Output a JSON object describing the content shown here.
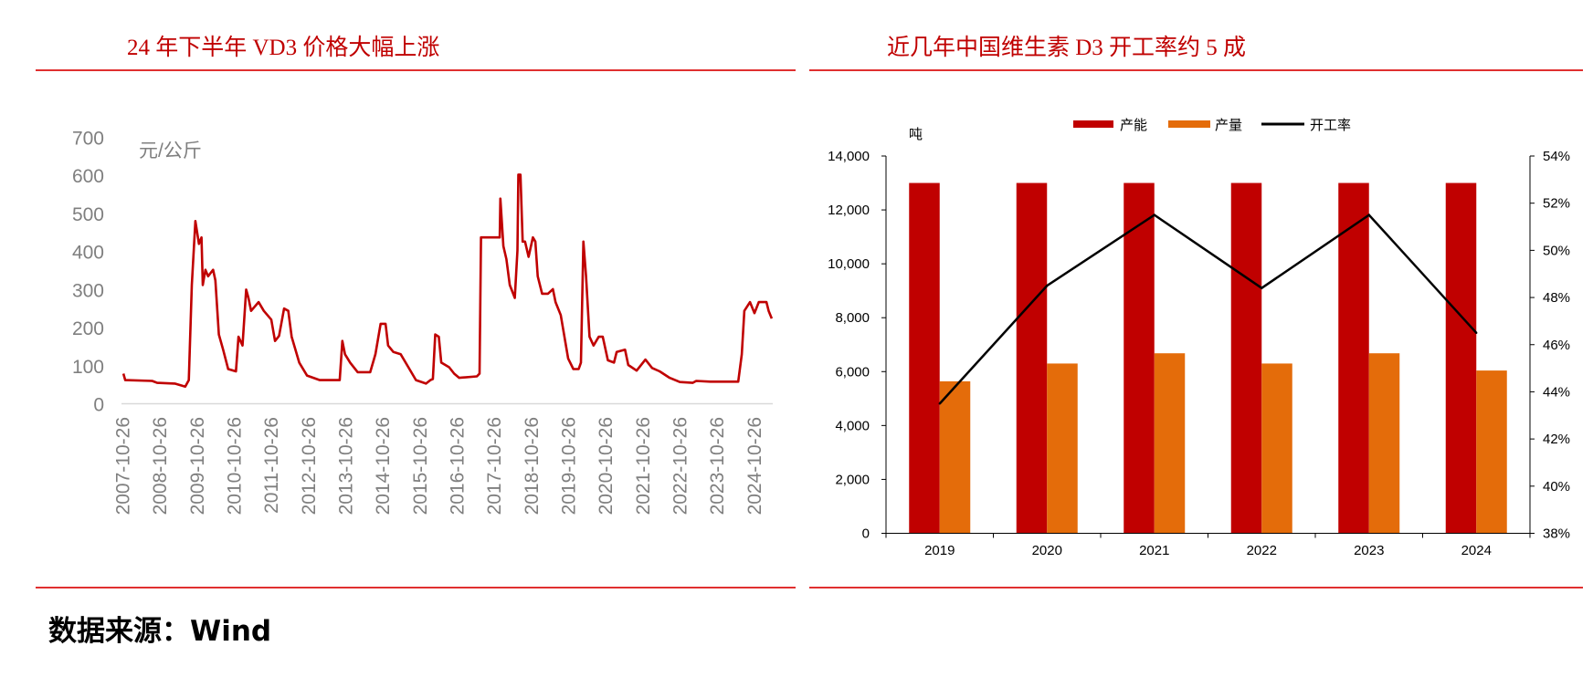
{
  "source": "数据来源：Wind",
  "colors": {
    "title": "#C00000",
    "rule": "#E03030",
    "capacity": "#C00000",
    "output": "#E46C0A",
    "rate": "#000000",
    "price": "#C00000"
  },
  "chart_data": [
    {
      "type": "line",
      "title": "24 年下半年 VD3 价格大幅上涨",
      "unit_label": "元/公斤",
      "xlabel": "",
      "ylabel": "",
      "ylim": [
        0,
        700
      ],
      "y_ticks": [
        "0",
        "100",
        "200",
        "300",
        "400",
        "500",
        "600",
        "700"
      ],
      "x_ticks": [
        "2007-10-26",
        "2008-10-26",
        "2009-10-26",
        "2010-10-26",
        "2011-10-26",
        "2012-10-26",
        "2013-10-26",
        "2014-10-26",
        "2015-10-26",
        "2016-10-26",
        "2017-10-26",
        "2018-10-26",
        "2019-10-26",
        "2020-10-26",
        "2021-10-26",
        "2022-10-26",
        "2023-10-26",
        "2024-10-26"
      ],
      "grid": false,
      "series": [
        {
          "points": [
            [
              "2007-11-01",
              79
            ],
            [
              "2007-11-19",
              62
            ],
            [
              "2008-08-10",
              60
            ],
            [
              "2008-09-28",
              55
            ],
            [
              "2009-03-21",
              53
            ],
            [
              "2009-07-01",
              45
            ],
            [
              "2009-08-05",
              62
            ],
            [
              "2009-09-04",
              312
            ],
            [
              "2009-10-09",
              480
            ],
            [
              "2009-11-13",
              420
            ],
            [
              "2009-12-08",
              437
            ],
            [
              "2009-12-21",
              312
            ],
            [
              "2010-01-16",
              352
            ],
            [
              "2010-02-11",
              335
            ],
            [
              "2010-04-01",
              352
            ],
            [
              "2010-04-24",
              324
            ],
            [
              "2010-05-28",
              182
            ],
            [
              "2010-07-09",
              142
            ],
            [
              "2010-08-27",
              91
            ],
            [
              "2010-11-12",
              85
            ],
            [
              "2010-12-07",
              176
            ],
            [
              "2011-01-15",
              153
            ],
            [
              "2011-02-20",
              300
            ],
            [
              "2011-03-15",
              278
            ],
            [
              "2011-04-10",
              244
            ],
            [
              "2011-06-22",
              267
            ],
            [
              "2011-08-13",
              244
            ],
            [
              "2011-10-25",
              221
            ],
            [
              "2011-12-01",
              165
            ],
            [
              "2012-01-10",
              178
            ],
            [
              "2012-02-28",
              250
            ],
            [
              "2012-04-09",
              244
            ],
            [
              "2012-05-13",
              176
            ],
            [
              "2012-07-26",
              108
            ],
            [
              "2012-10-10",
              74
            ],
            [
              "2013-02-13",
              62
            ],
            [
              "2013-08-28",
              62
            ],
            [
              "2013-09-23",
              165
            ],
            [
              "2013-10-19",
              130
            ],
            [
              "2013-12-08",
              108
            ],
            [
              "2014-02-21",
              83
            ],
            [
              "2014-06-24",
              83
            ],
            [
              "2014-08-14",
              130
            ],
            [
              "2014-10-04",
              210
            ],
            [
              "2014-11-22",
              210
            ],
            [
              "2014-12-17",
              153
            ],
            [
              "2015-02-07",
              136
            ],
            [
              "2015-04-20",
              130
            ],
            [
              "2015-07-04",
              96
            ],
            [
              "2015-09-17",
              62
            ],
            [
              "2015-12-25",
              53
            ],
            [
              "2016-02-06",
              62
            ],
            [
              "2016-03-01",
              65
            ],
            [
              "2016-03-24",
              182
            ],
            [
              "2016-04-28",
              176
            ],
            [
              "2016-05-23",
              108
            ],
            [
              "2016-08-08",
              96
            ],
            [
              "2016-09-26",
              79
            ],
            [
              "2016-11-15",
              68
            ],
            [
              "2017-05-08",
              72
            ],
            [
              "2017-06-03",
              79
            ],
            [
              "2017-06-17",
              437
            ],
            [
              "2017-12-18",
              437
            ],
            [
              "2017-12-25",
              539
            ],
            [
              "2018-01-23",
              414
            ],
            [
              "2018-02-22",
              380
            ],
            [
              "2018-03-27",
              312
            ],
            [
              "2018-05-16",
              278
            ],
            [
              "2018-06-11",
              403
            ],
            [
              "2018-06-20",
              602
            ],
            [
              "2018-07-10",
              602
            ],
            [
              "2018-08-01",
              426
            ],
            [
              "2018-08-24",
              426
            ],
            [
              "2018-09-28",
              386
            ],
            [
              "2018-11-09",
              437
            ],
            [
              "2018-12-04",
              426
            ],
            [
              "2018-12-27",
              335
            ],
            [
              "2019-02-08",
              289
            ],
            [
              "2019-04-07",
              289
            ],
            [
              "2019-05-25",
              301
            ],
            [
              "2019-06-20",
              267
            ],
            [
              "2019-08-10",
              233
            ],
            [
              "2019-10-22",
              119
            ],
            [
              "2019-12-12",
              91
            ],
            [
              "2020-02-02",
              91
            ],
            [
              "2020-02-25",
              108
            ],
            [
              "2020-03-20",
              426
            ],
            [
              "2020-04-15",
              335
            ],
            [
              "2020-05-19",
              176
            ],
            [
              "2020-06-28",
              153
            ],
            [
              "2020-08-18",
              176
            ],
            [
              "2020-09-26",
              176
            ],
            [
              "2020-11-16",
              114
            ],
            [
              "2021-01-15",
              108
            ],
            [
              "2021-02-10",
              136
            ],
            [
              "2021-05-04",
              142
            ],
            [
              "2021-06-04",
              102
            ],
            [
              "2021-08-26",
              87
            ],
            [
              "2021-11-20",
              116
            ],
            [
              "2022-01-24",
              94
            ],
            [
              "2022-04-09",
              85
            ],
            [
              "2022-07-16",
              68
            ],
            [
              "2022-10-24",
              57
            ],
            [
              "2023-02-27",
              55
            ],
            [
              "2023-04-03",
              60
            ],
            [
              "2023-08-20",
              58
            ],
            [
              "2024-05-20",
              58
            ],
            [
              "2024-06-24",
              130
            ],
            [
              "2024-07-19",
              244
            ],
            [
              "2024-09-13",
              267
            ],
            [
              "2024-10-27",
              238
            ],
            [
              "2024-12-08",
              267
            ],
            [
              "2025-02-22",
              267
            ],
            [
              "2025-03-15",
              244
            ],
            [
              "2025-04-15",
              224
            ]
          ]
        }
      ]
    },
    {
      "type": "bar",
      "title": "近几年中国维生素 D3 开工率约 5 成",
      "categories": [
        "2019",
        "2020",
        "2021",
        "2022",
        "2023",
        "2024"
      ],
      "left_unit": "吨",
      "ylim": [
        0,
        14000
      ],
      "y_ticks": [
        "0",
        "2,000",
        "4,000",
        "6,000",
        "8,000",
        "10,000",
        "12,000",
        "14,000"
      ],
      "y2lim": [
        38,
        54
      ],
      "y2_ticks": [
        "38%",
        "40%",
        "42%",
        "44%",
        "46%",
        "48%",
        "50%",
        "52%",
        "54%"
      ],
      "legend_position": "top",
      "grid": false,
      "series": [
        {
          "name": "产能",
          "type": "bar",
          "axis": "left",
          "values": [
            13000,
            13000,
            13000,
            13000,
            13000,
            13000
          ]
        },
        {
          "name": "产量",
          "type": "bar",
          "axis": "left",
          "values": [
            5640,
            6300,
            6680,
            6300,
            6680,
            6040
          ]
        },
        {
          "name": "开工率",
          "type": "line",
          "axis": "right",
          "values": [
            43.5,
            48.5,
            51.5,
            48.4,
            51.5,
            46.5
          ]
        }
      ]
    }
  ]
}
